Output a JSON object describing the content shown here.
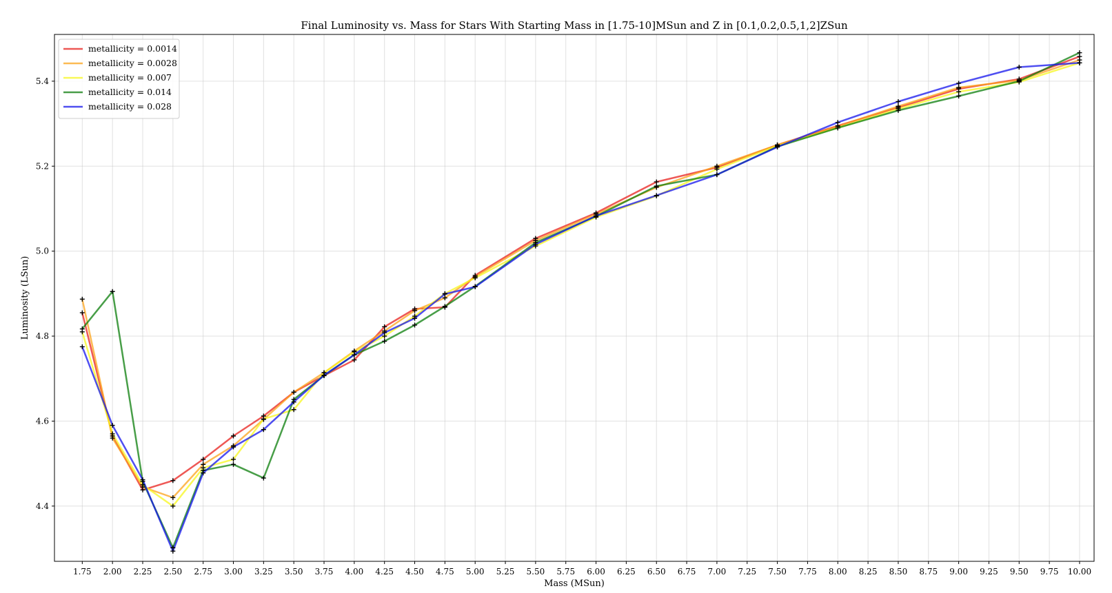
{
  "chart_data": {
    "type": "line",
    "title": "Final Luminosity vs. Mass for Stars With Starting Mass in [1.75-10]MSun and Z in [0.1,0.2,0.5,1,2]ZSun",
    "xlabel": "Mass (MSun)",
    "ylabel": "Luminosity (LSun)",
    "xlim": [
      1.52,
      10.12
    ],
    "ylim": [
      4.27,
      5.51
    ],
    "x_ticks": [
      1.75,
      2.0,
      2.25,
      2.5,
      2.75,
      3.0,
      3.25,
      3.5,
      3.75,
      4.0,
      4.25,
      4.5,
      4.75,
      5.0,
      5.25,
      5.5,
      5.75,
      6.0,
      6.25,
      6.5,
      6.75,
      7.0,
      7.25,
      7.5,
      7.75,
      8.0,
      8.25,
      8.5,
      8.75,
      9.0,
      9.25,
      9.5,
      9.75,
      10.0
    ],
    "x_tick_labels": [
      "1.75",
      "2.00",
      "2.25",
      "2.50",
      "2.75",
      "3.00",
      "3.25",
      "3.50",
      "3.75",
      "4.00",
      "4.25",
      "4.50",
      "4.75",
      "5.00",
      "5.25",
      "5.50",
      "5.75",
      "6.00",
      "6.25",
      "6.50",
      "6.75",
      "7.00",
      "7.25",
      "7.50",
      "7.75",
      "8.00",
      "8.25",
      "8.50",
      "8.75",
      "9.00",
      "9.25",
      "9.50",
      "9.75",
      "10.00"
    ],
    "y_ticks": [
      4.4,
      4.6,
      4.8,
      5.0,
      5.2,
      5.4
    ],
    "y_tick_labels": [
      "4.4",
      "4.6",
      "4.8",
      "5.0",
      "5.2",
      "5.4"
    ],
    "grid": true,
    "legend_position": "top-left",
    "marker": "+",
    "marker_color": "#000000",
    "x": [
      1.75,
      2.0,
      2.25,
      2.5,
      2.75,
      3.0,
      3.25,
      3.5,
      3.75,
      4.0,
      4.25,
      4.5,
      4.75,
      5.0,
      5.5,
      6.0,
      6.5,
      7.0,
      7.5,
      8.0,
      8.5,
      9.0,
      9.5,
      10.0
    ],
    "series": [
      {
        "name": "metallicity = 0.0014",
        "color": "#e8201c",
        "values": [
          4.855,
          4.565,
          4.438,
          4.46,
          4.51,
          4.565,
          4.612,
          4.668,
          4.707,
          4.744,
          4.822,
          4.864,
          4.868,
          4.943,
          5.03,
          5.09,
          5.163,
          5.197,
          5.25,
          5.295,
          5.338,
          5.382,
          5.405,
          5.458
        ]
      },
      {
        "name": "metallicity = 0.0028",
        "color": "#fca31a",
        "values": [
          4.887,
          4.56,
          4.445,
          4.42,
          4.498,
          4.542,
          4.604,
          4.668,
          4.714,
          4.765,
          4.812,
          4.86,
          4.89,
          4.94,
          5.025,
          5.087,
          5.15,
          5.2,
          5.25,
          5.294,
          5.341,
          5.385,
          5.402,
          5.45
        ]
      },
      {
        "name": "metallicity = 0.007",
        "color": "#f7f71e",
        "values": [
          4.81,
          4.57,
          4.45,
          4.4,
          4.49,
          4.51,
          4.605,
          4.627,
          4.714,
          4.763,
          4.8,
          4.847,
          4.9,
          4.937,
          5.012,
          5.08,
          5.13,
          5.193,
          5.248,
          5.29,
          5.335,
          5.375,
          5.398,
          5.443
        ]
      },
      {
        "name": "metallicity = 0.014",
        "color": "#0b7d0b",
        "values": [
          4.817,
          4.905,
          4.458,
          4.302,
          4.484,
          4.498,
          4.466,
          4.651,
          4.707,
          4.756,
          4.788,
          4.826,
          4.87,
          4.917,
          5.02,
          5.082,
          5.153,
          5.18,
          5.246,
          5.29,
          5.331,
          5.365,
          5.4,
          5.467
        ]
      },
      {
        "name": "metallicity = 0.028",
        "color": "#1414ec",
        "values": [
          4.775,
          4.59,
          4.462,
          4.294,
          4.478,
          4.539,
          4.58,
          4.645,
          4.708,
          4.756,
          4.808,
          4.842,
          4.899,
          4.916,
          5.016,
          5.083,
          5.131,
          5.18,
          5.245,
          5.303,
          5.352,
          5.395,
          5.433,
          5.443
        ]
      }
    ]
  }
}
